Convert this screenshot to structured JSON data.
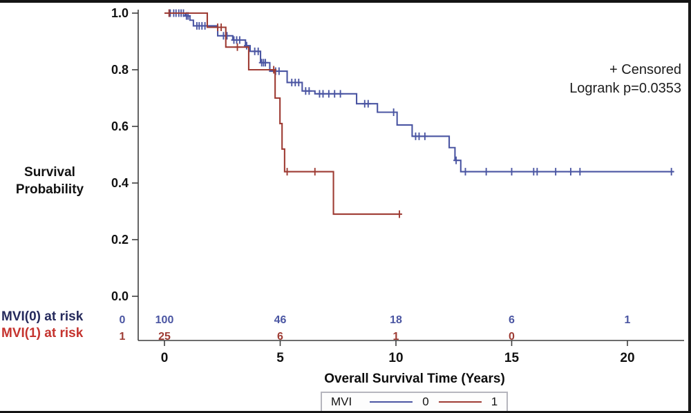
{
  "figure": {
    "y_title_line1": "Survival",
    "y_title_line2": "Probability",
    "x_title": "Overall Survival Time (Years)",
    "annotation_censored": "+ Censored",
    "annotation_logrank": "Logrank p=0.0353",
    "legend_group_label": "MVI",
    "legend_entry_0": "0",
    "legend_entry_1": "1"
  },
  "colors": {
    "mvi0_curve": "#4A55A2",
    "mvi1_curve": "#9E3B33",
    "mvi0_risk_label": "#252A5C",
    "mvi1_risk_label": "#C5332E",
    "axis": "#3d3d3d",
    "tick_text": "#111111"
  },
  "chart_data": {
    "type": "line",
    "subtype": "kaplan-meier-step",
    "title": "",
    "xlabel": "Overall Survival Time (Years)",
    "ylabel": "Survival Probability",
    "x_axis": {
      "ticks": [
        0,
        5,
        10,
        15,
        20
      ],
      "tick_labels": [
        "0",
        "5",
        "10",
        "15",
        "20"
      ],
      "range": [
        0,
        22.5
      ]
    },
    "y_axis": {
      "ticks": [
        1.0,
        0.8,
        0.6,
        0.4,
        0.2,
        0.0
      ],
      "tick_labels": [
        "1.0",
        "0.8",
        "0.6",
        "0.4",
        "0.2",
        "0.0"
      ],
      "range": [
        0,
        1
      ]
    },
    "annotations": [
      "+ Censored",
      "Logrank p=0.0353"
    ],
    "legend_position": "bottom",
    "grid": false,
    "series": [
      {
        "name": "0",
        "group": "MVI(0)",
        "color": "#4A55A2",
        "start_value": 1.0,
        "end_time": 22.0,
        "drops": [
          [
            0.9,
            0.99
          ],
          [
            1.1,
            0.975
          ],
          [
            1.25,
            0.955
          ],
          [
            2.3,
            0.92
          ],
          [
            2.95,
            0.905
          ],
          [
            3.5,
            0.885
          ],
          [
            3.7,
            0.865
          ],
          [
            4.15,
            0.825
          ],
          [
            4.55,
            0.795
          ],
          [
            5.3,
            0.755
          ],
          [
            5.95,
            0.725
          ],
          [
            6.5,
            0.715
          ],
          [
            8.3,
            0.68
          ],
          [
            9.2,
            0.65
          ],
          [
            10.05,
            0.605
          ],
          [
            10.7,
            0.565
          ],
          [
            12.3,
            0.525
          ],
          [
            12.55,
            0.48
          ],
          [
            12.8,
            0.44
          ]
        ],
        "censors": [
          [
            0.25,
            1
          ],
          [
            0.4,
            1
          ],
          [
            0.5,
            1
          ],
          [
            0.62,
            1
          ],
          [
            0.72,
            1
          ],
          [
            0.82,
            1
          ],
          [
            0.95,
            0.99
          ],
          [
            1.02,
            0.99
          ],
          [
            1.4,
            0.955
          ],
          [
            1.5,
            0.955
          ],
          [
            1.62,
            0.955
          ],
          [
            1.75,
            0.955
          ],
          [
            2.55,
            0.92
          ],
          [
            2.7,
            0.92
          ],
          [
            3.0,
            0.905
          ],
          [
            3.12,
            0.905
          ],
          [
            3.25,
            0.905
          ],
          [
            3.55,
            0.885
          ],
          [
            3.9,
            0.865
          ],
          [
            4.05,
            0.865
          ],
          [
            4.2,
            0.825
          ],
          [
            4.28,
            0.825
          ],
          [
            4.36,
            0.825
          ],
          [
            4.8,
            0.795
          ],
          [
            4.95,
            0.795
          ],
          [
            5.5,
            0.755
          ],
          [
            5.65,
            0.755
          ],
          [
            5.8,
            0.755
          ],
          [
            6.1,
            0.725
          ],
          [
            6.25,
            0.725
          ],
          [
            6.7,
            0.715
          ],
          [
            6.85,
            0.715
          ],
          [
            7.1,
            0.715
          ],
          [
            7.35,
            0.715
          ],
          [
            7.6,
            0.715
          ],
          [
            8.65,
            0.68
          ],
          [
            8.8,
            0.68
          ],
          [
            9.9,
            0.65
          ],
          [
            10.85,
            0.565
          ],
          [
            11.0,
            0.565
          ],
          [
            11.25,
            0.565
          ],
          [
            12.6,
            0.48
          ],
          [
            13.0,
            0.44
          ],
          [
            13.9,
            0.44
          ],
          [
            15.0,
            0.44
          ],
          [
            15.95,
            0.44
          ],
          [
            16.1,
            0.44
          ],
          [
            16.9,
            0.44
          ],
          [
            17.55,
            0.44
          ],
          [
            17.95,
            0.44
          ],
          [
            21.9,
            0.44
          ]
        ]
      },
      {
        "name": "1",
        "group": "MVI(1)",
        "color": "#9E3B33",
        "start_value": 1.0,
        "end_time": 10.2,
        "drops": [
          [
            1.85,
            0.95
          ],
          [
            2.65,
            0.88
          ],
          [
            3.64,
            0.8
          ],
          [
            4.78,
            0.7
          ],
          [
            4.99,
            0.61
          ],
          [
            5.08,
            0.52
          ],
          [
            5.19,
            0.44
          ],
          [
            7.3,
            0.29
          ]
        ],
        "censors": [
          [
            0.2,
            1
          ],
          [
            2.3,
            0.95
          ],
          [
            2.45,
            0.95
          ],
          [
            3.15,
            0.88
          ],
          [
            4.72,
            0.8
          ],
          [
            5.3,
            0.44
          ],
          [
            6.5,
            0.44
          ],
          [
            10.15,
            0.29
          ]
        ]
      }
    ],
    "at_risk_table": {
      "times": [
        0,
        5,
        10,
        15,
        20
      ],
      "rows": [
        {
          "label": "MVI(0) at risk",
          "group_id": "0",
          "counts": [
            "100",
            "46",
            "18",
            "6",
            "1"
          ],
          "color": "#4A55A2"
        },
        {
          "label": "MVI(1) at risk",
          "group_id": "1",
          "counts": [
            "25",
            "6",
            "1",
            "0",
            ""
          ],
          "color": "#9E3B33"
        }
      ]
    },
    "logrank_p": "0.0353"
  }
}
